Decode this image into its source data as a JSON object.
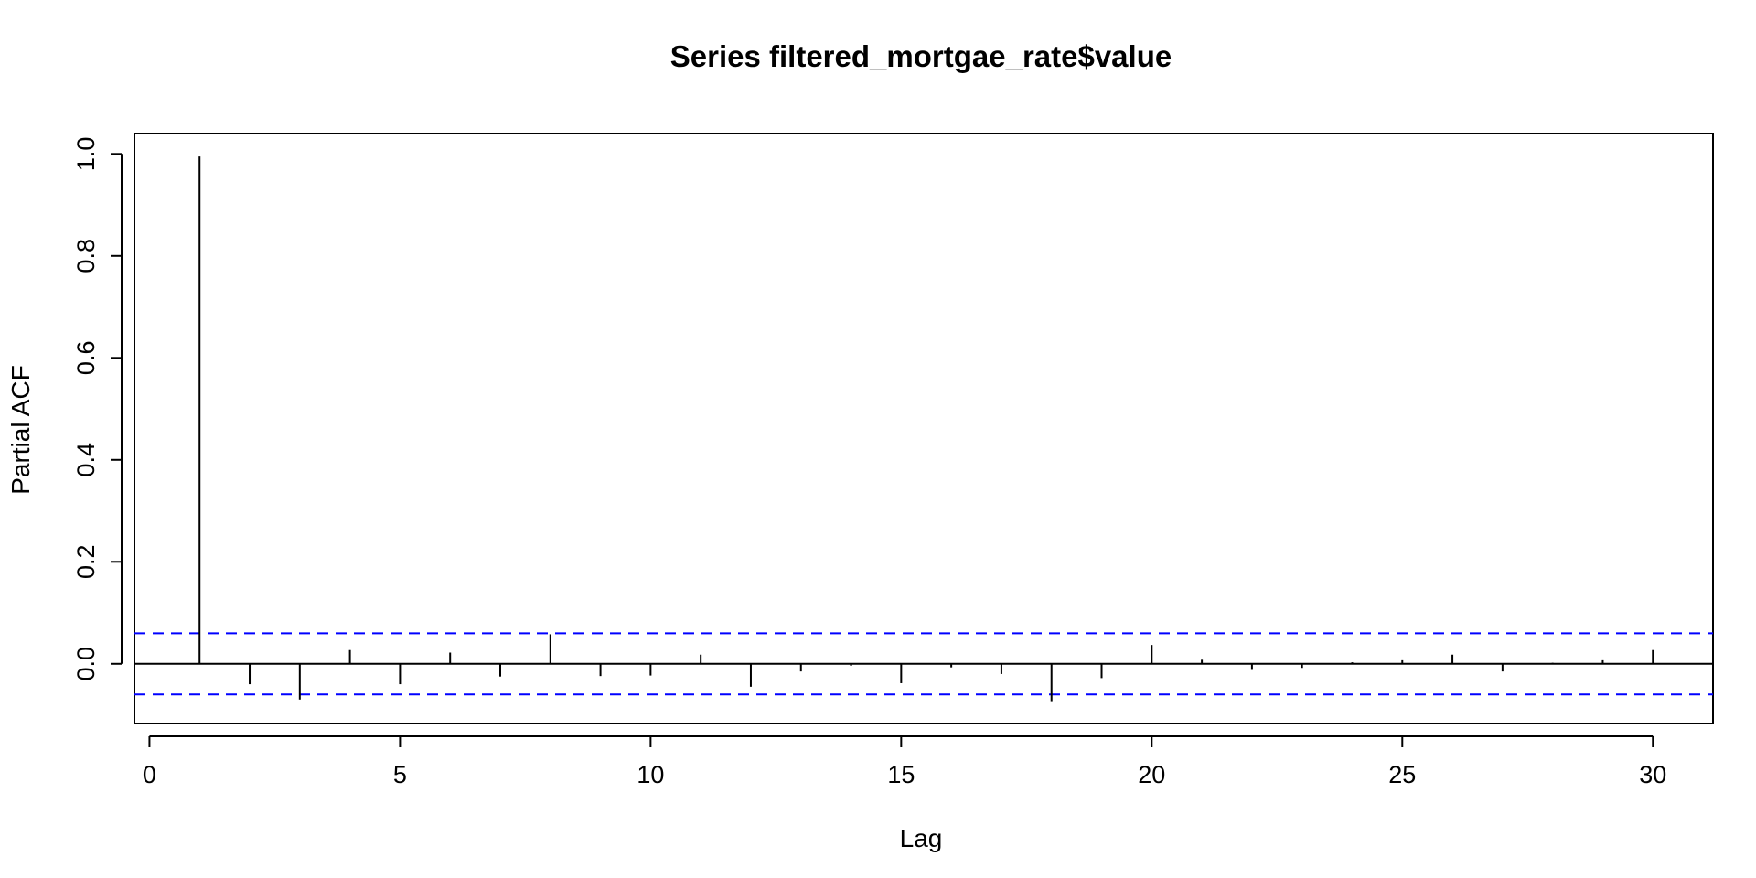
{
  "chart_data": {
    "type": "bar",
    "title": "Series  filtered_mortgae_rate$value",
    "xlabel": "Lag",
    "ylabel": "Partial ACF",
    "xlim": [
      -0.3,
      31.2
    ],
    "ylim": [
      -0.117,
      1.04
    ],
    "x_ticks": [
      0,
      5,
      10,
      15,
      20,
      25,
      30
    ],
    "x_tick_labels": [
      "0",
      "5",
      "10",
      "15",
      "20",
      "25",
      "30"
    ],
    "y_ticks": [
      0.0,
      0.2,
      0.4,
      0.6,
      0.8,
      1.0
    ],
    "y_tick_labels": [
      "0.0",
      "0.2",
      "0.4",
      "0.6",
      "0.8",
      "1.0"
    ],
    "confidence_bound": 0.06,
    "grid": false,
    "colors": {
      "bars": "#000000",
      "confidence": "#0000ff",
      "axes": "#000000"
    },
    "lags": [
      1,
      2,
      3,
      4,
      5,
      6,
      7,
      8,
      9,
      10,
      11,
      12,
      13,
      14,
      15,
      16,
      17,
      18,
      19,
      20,
      21,
      22,
      23,
      24,
      25,
      26,
      27,
      28,
      29,
      30
    ],
    "values": [
      0.995,
      -0.04,
      -0.07,
      0.027,
      -0.04,
      0.022,
      -0.025,
      0.058,
      -0.024,
      -0.023,
      0.018,
      -0.045,
      -0.015,
      -0.004,
      -0.038,
      -0.007,
      -0.02,
      -0.075,
      -0.028,
      0.037,
      0.008,
      -0.012,
      -0.008,
      0.003,
      0.007,
      0.018,
      -0.015,
      0.002,
      0.007,
      0.027
    ]
  }
}
